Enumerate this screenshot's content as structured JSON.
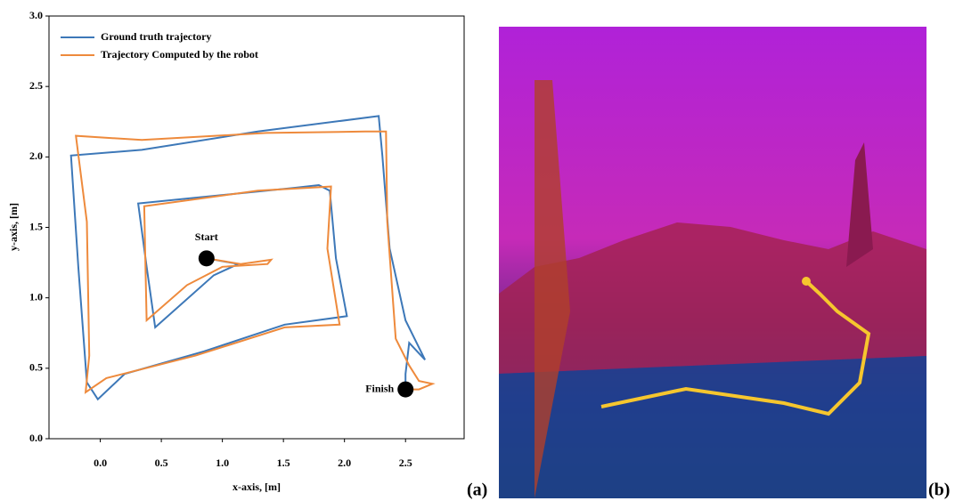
{
  "chart_data": {
    "type": "line",
    "xlabel": "x-axis, [m]",
    "ylabel": "y-axis, [m]",
    "xlim": [
      -0.42,
      2.98
    ],
    "ylim": [
      0,
      3
    ],
    "xticks": [
      {
        "value": 0,
        "label": "0.0"
      },
      0.5,
      {
        "value": 1,
        "label": "1.0"
      },
      1.5,
      {
        "value": 2,
        "label": "2.0"
      },
      2.5
    ],
    "yticks": [
      {
        "value": 0,
        "label": "0.0"
      },
      0.5,
      {
        "value": 1,
        "label": "1.0"
      },
      1.5,
      {
        "value": 2,
        "label": "2.0"
      },
      2.5,
      {
        "value": 3,
        "label": "3.0"
      }
    ],
    "legend": "upper left",
    "series": [
      {
        "name": "Ground truth trajectory",
        "color": "#3d78b8",
        "x": [
          0.87,
          1.13,
          0.93,
          0.45,
          0.38,
          0.31,
          1.58,
          1.79,
          1.88,
          1.93,
          2.02,
          1.51,
          0.85,
          0.2,
          -0.02,
          -0.11,
          -0.18,
          -0.24,
          0.34,
          1.29,
          2.28,
          2.31,
          2.37,
          2.5,
          2.66,
          2.53,
          2.5,
          2.5
        ],
        "values": [
          1.28,
          1.24,
          1.16,
          0.79,
          1.22,
          1.67,
          1.78,
          1.8,
          1.76,
          1.28,
          0.87,
          0.81,
          0.62,
          0.46,
          0.28,
          0.4,
          1.22,
          2.01,
          2.05,
          2.18,
          2.29,
          2.01,
          1.35,
          0.84,
          0.56,
          0.68,
          0.46,
          0.35
        ]
      },
      {
        "name": "Trajectory Computed by the robot",
        "color": "#ee8a3c",
        "x": [
          0.87,
          1.15,
          1.4,
          1.37,
          1.0,
          0.71,
          0.38,
          0.37,
          0.36,
          1.29,
          1.89,
          1.86,
          1.96,
          1.51,
          0.78,
          0.05,
          -0.12,
          -0.09,
          -0.11,
          -0.2,
          0.34,
          1.36,
          2.17,
          2.34,
          2.35,
          2.42,
          2.53,
          2.61,
          2.72,
          2.61,
          2.5
        ],
        "values": [
          1.28,
          1.24,
          1.27,
          1.24,
          1.22,
          1.09,
          0.84,
          1.22,
          1.65,
          1.76,
          1.79,
          1.35,
          0.81,
          0.79,
          0.59,
          0.43,
          0.33,
          0.59,
          1.54,
          2.15,
          2.12,
          2.17,
          2.18,
          2.18,
          1.54,
          0.71,
          0.52,
          0.41,
          0.39,
          0.35,
          0.35
        ]
      }
    ],
    "annotations": [
      {
        "text": "Start",
        "x": 0.87,
        "y": 1.28
      },
      {
        "text": "Finish",
        "x": 2.5,
        "y": 0.35
      }
    ]
  },
  "panel_labels": [
    "(a)",
    "(b)"
  ]
}
